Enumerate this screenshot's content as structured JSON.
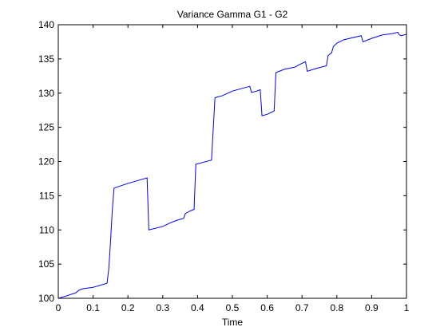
{
  "chart_data": {
    "type": "line",
    "title": "Variance Gamma G1 - G2",
    "xlabel": "Time",
    "ylabel": "",
    "xlim": [
      0,
      1
    ],
    "ylim": [
      100,
      140
    ],
    "xticks": [
      "0",
      "0.1",
      "0.2",
      "0.3",
      "0.4",
      "0.5",
      "0.6",
      "0.7",
      "0.8",
      "0.9",
      "1"
    ],
    "yticks": [
      "100",
      "105",
      "110",
      "115",
      "120",
      "125",
      "130",
      "135",
      "140"
    ],
    "grid": false,
    "legend": "none",
    "line_color": "#0000ff",
    "series": [
      {
        "x": [
          0,
          0.02,
          0.05,
          0.06,
          0.07,
          0.1,
          0.14,
          0.145,
          0.15,
          0.155,
          0.16,
          0.165,
          0.2,
          0.255,
          0.26,
          0.3,
          0.32,
          0.34,
          0.36,
          0.365,
          0.38,
          0.39,
          0.395,
          0.41,
          0.44,
          0.45,
          0.455,
          0.47,
          0.5,
          0.55,
          0.555,
          0.57,
          0.58,
          0.585,
          0.6,
          0.62,
          0.625,
          0.65,
          0.68,
          0.69,
          0.71,
          0.715,
          0.74,
          0.77,
          0.775,
          0.785,
          0.79,
          0.8,
          0.82,
          0.87,
          0.875,
          0.9,
          0.93,
          0.96,
          0.975,
          0.98,
          0.985,
          1.0
        ],
        "y": [
          100,
          100.3,
          100.8,
          101.2,
          101.4,
          101.6,
          102.2,
          104.3,
          108.3,
          112.8,
          116.1,
          116.2,
          116.8,
          117.6,
          110,
          110.5,
          111.0,
          111.4,
          111.7,
          112.4,
          112.8,
          113.0,
          119.6,
          119.8,
          120.2,
          129.3,
          129.4,
          129.6,
          130.3,
          131.0,
          130.1,
          130.3,
          130.5,
          126.7,
          126.9,
          127.4,
          133.0,
          133.5,
          133.8,
          134.1,
          134.6,
          133.2,
          133.6,
          134.0,
          135.5,
          135.9,
          136.8,
          137.3,
          137.8,
          138.4,
          137.5,
          138.0,
          138.5,
          138.7,
          138.9,
          138.5,
          138.4,
          138.6
        ]
      }
    ]
  }
}
